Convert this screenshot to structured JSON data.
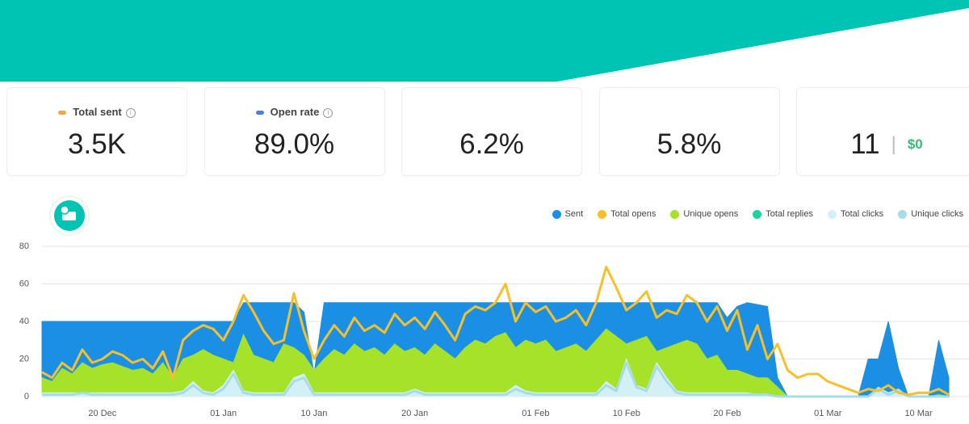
{
  "stats": [
    {
      "label": "Total sent",
      "value": "3.5K"
    },
    {
      "label": "Open rate",
      "value": "89.0%"
    },
    {
      "value": "6.2%"
    },
    {
      "value": "5.8%"
    },
    {
      "value": "11",
      "secondary": "$0"
    }
  ],
  "chart_data": {
    "type": "area",
    "categories": [
      null,
      null,
      null,
      null,
      null,
      null,
      "20 Dec",
      null,
      null,
      null,
      null,
      null,
      null,
      null,
      null,
      null,
      null,
      null,
      "01 Jan",
      null,
      null,
      null,
      null,
      null,
      null,
      null,
      null,
      "10 Jan",
      null,
      null,
      null,
      null,
      null,
      null,
      null,
      null,
      null,
      "20 Jan",
      null,
      null,
      null,
      null,
      null,
      null,
      null,
      null,
      null,
      null,
      null,
      "01 Feb",
      null,
      null,
      null,
      null,
      null,
      null,
      null,
      null,
      "10 Feb",
      null,
      null,
      null,
      null,
      null,
      null,
      null,
      null,
      null,
      "20 Feb",
      null,
      null,
      null,
      null,
      null,
      null,
      null,
      null,
      null,
      "01 Mar",
      null,
      null,
      null,
      null,
      null,
      null,
      null,
      null,
      "10 Mar",
      null,
      null,
      null
    ],
    "ylim": [
      0,
      80
    ],
    "yticks": [
      0,
      20,
      40,
      60,
      80
    ],
    "grid": true,
    "legend": "top-right",
    "series": [
      {
        "name": "Sent",
        "type": "area",
        "color": "#1a8fe3",
        "values": [
          40,
          40,
          40,
          40,
          40,
          40,
          40,
          40,
          40,
          40,
          40,
          40,
          40,
          40,
          40,
          40,
          40,
          40,
          40,
          40,
          50,
          50,
          50,
          50,
          50,
          50,
          45,
          12,
          50,
          50,
          50,
          50,
          50,
          50,
          50,
          50,
          50,
          50,
          50,
          50,
          50,
          50,
          50,
          50,
          50,
          50,
          50,
          50,
          50,
          50,
          50,
          50,
          50,
          50,
          50,
          50,
          50,
          50,
          50,
          50,
          50,
          50,
          50,
          50,
          50,
          50,
          50,
          50,
          42,
          48,
          50,
          49,
          48,
          10,
          0,
          0,
          0,
          0,
          0,
          0,
          0,
          0,
          20,
          20,
          40,
          15,
          0,
          0,
          0,
          30,
          10
        ]
      },
      {
        "name": "Total opens",
        "type": "line",
        "color": "#f5c02c",
        "values": [
          13,
          10,
          18,
          14,
          25,
          18,
          20,
          24,
          22,
          18,
          20,
          15,
          24,
          10,
          30,
          35,
          38,
          36,
          30,
          40,
          54,
          45,
          35,
          28,
          30,
          55,
          35,
          20,
          30,
          38,
          32,
          42,
          35,
          38,
          34,
          44,
          38,
          42,
          36,
          45,
          38,
          30,
          44,
          48,
          46,
          50,
          60,
          40,
          50,
          45,
          48,
          40,
          42,
          46,
          38,
          50,
          69,
          58,
          46,
          50,
          56,
          42,
          46,
          44,
          54,
          50,
          40,
          48,
          35,
          46,
          25,
          38,
          20,
          28,
          14,
          10,
          12,
          12,
          8,
          6,
          4,
          2,
          4,
          3,
          6,
          2,
          1,
          2,
          2,
          4,
          1
        ]
      },
      {
        "name": "Unique opens",
        "type": "area",
        "color": "#a6e22a",
        "values": [
          10,
          8,
          15,
          12,
          18,
          15,
          17,
          18,
          16,
          14,
          15,
          12,
          18,
          10,
          20,
          22,
          25,
          22,
          20,
          18,
          33,
          22,
          20,
          18,
          28,
          26,
          22,
          14,
          20,
          25,
          22,
          28,
          24,
          26,
          22,
          28,
          24,
          26,
          22,
          28,
          24,
          20,
          26,
          30,
          28,
          32,
          34,
          26,
          30,
          28,
          30,
          24,
          26,
          28,
          24,
          30,
          36,
          32,
          28,
          30,
          32,
          24,
          26,
          28,
          30,
          28,
          20,
          22,
          14,
          14,
          12,
          10,
          10,
          5,
          0,
          0,
          0,
          0,
          0,
          0,
          0,
          0,
          0,
          0,
          2,
          0,
          0,
          0,
          0,
          1,
          0
        ]
      },
      {
        "name": "Total replies",
        "type": "area",
        "color": "#1dd3a0",
        "values": [
          1,
          1,
          1,
          1,
          1,
          1,
          1,
          1,
          1,
          1,
          1,
          1,
          1,
          1,
          1,
          1,
          1,
          1,
          1,
          1,
          1,
          1,
          1,
          1,
          1,
          1,
          1,
          1,
          1,
          1,
          1,
          1,
          1,
          1,
          1,
          1,
          1,
          1,
          1,
          1,
          1,
          1,
          1,
          1,
          1,
          1,
          1,
          1,
          1,
          1,
          1,
          1,
          1,
          1,
          1,
          1,
          1,
          1,
          1,
          1,
          1,
          1,
          1,
          1,
          1,
          1,
          1,
          1,
          1,
          1,
          1,
          1,
          1,
          0,
          0,
          0,
          0,
          0,
          0,
          0,
          0,
          0,
          0,
          0,
          0,
          0,
          0,
          0,
          0,
          0,
          0
        ]
      },
      {
        "name": "Total clicks",
        "type": "area",
        "color": "#d4f0f7",
        "values": [
          2,
          2,
          2,
          2,
          2,
          2,
          2,
          2,
          2,
          2,
          2,
          2,
          2,
          2,
          3,
          8,
          3,
          2,
          6,
          14,
          3,
          2,
          2,
          2,
          2,
          10,
          12,
          2,
          2,
          2,
          2,
          2,
          2,
          2,
          2,
          2,
          2,
          4,
          2,
          2,
          2,
          2,
          2,
          2,
          2,
          2,
          2,
          6,
          3,
          2,
          2,
          2,
          2,
          2,
          2,
          2,
          8,
          4,
          20,
          6,
          4,
          18,
          10,
          3,
          2,
          2,
          2,
          2,
          2,
          2,
          2,
          1,
          1,
          0,
          0,
          0,
          0,
          0,
          0,
          0,
          0,
          0,
          0,
          5,
          2,
          4,
          0,
          0,
          0,
          0,
          0
        ]
      },
      {
        "name": "Unique clicks",
        "type": "line",
        "color": "#a8dbe8",
        "values": [
          1,
          1,
          1,
          1,
          2,
          1,
          1,
          1,
          1,
          1,
          1,
          1,
          1,
          1,
          2,
          6,
          2,
          1,
          4,
          12,
          2,
          1,
          1,
          1,
          1,
          8,
          10,
          1,
          1,
          1,
          1,
          1,
          1,
          1,
          1,
          1,
          1,
          3,
          1,
          1,
          1,
          1,
          1,
          1,
          1,
          1,
          1,
          4,
          2,
          1,
          1,
          1,
          1,
          1,
          1,
          1,
          6,
          3,
          18,
          5,
          3,
          16,
          8,
          2,
          1,
          1,
          1,
          1,
          1,
          1,
          1,
          1,
          1,
          0,
          0,
          0,
          0,
          0,
          0,
          0,
          0,
          0,
          0,
          4,
          1,
          3,
          0,
          0,
          0,
          0,
          0
        ]
      }
    ]
  }
}
